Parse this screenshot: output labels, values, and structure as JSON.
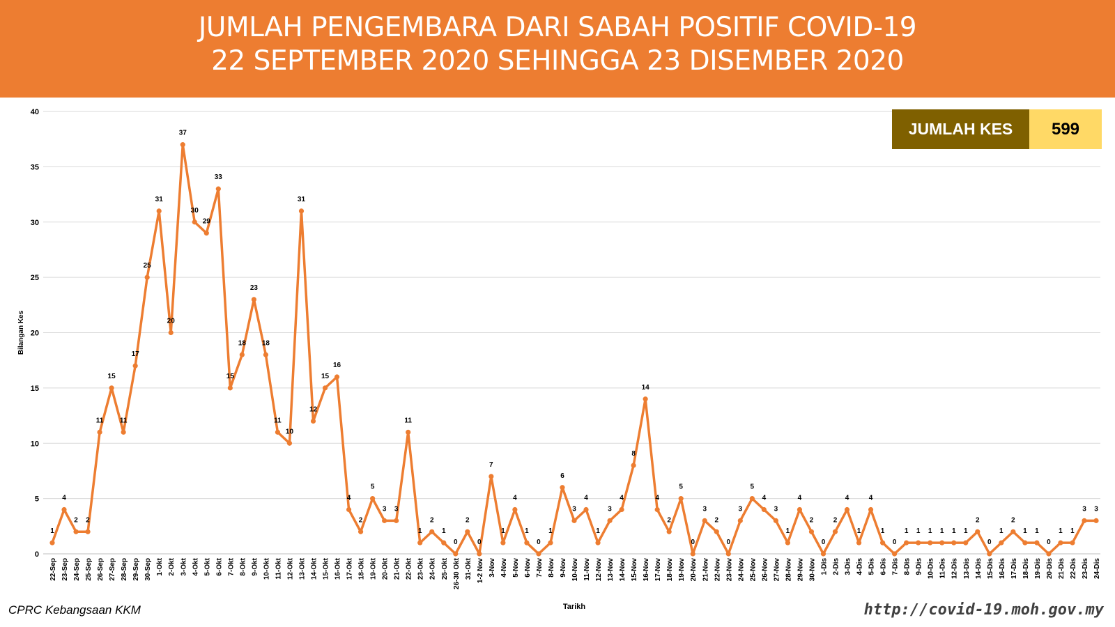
{
  "header": {
    "title_line1": "JUMLAH PENGEMBARA DARI SABAH POSITIF COVID-19",
    "title_line2": "22 SEPTEMBER 2020 SEHINGGA 23 DISEMBER 2020"
  },
  "total": {
    "label": "JUMLAH KES",
    "value": "599"
  },
  "footer": {
    "source": "CPRC Kebangsaan KKM",
    "url": "http://covid-19.moh.gov.my"
  },
  "colors": {
    "accent": "#ED7D31",
    "label_bg": "#7F6000",
    "value_bg": "#FFD966"
  },
  "chart_data": {
    "type": "line",
    "xlabel": "Tarikh",
    "ylabel": "Bilangan Kes",
    "ylim": [
      0,
      40
    ],
    "yticks": [
      0,
      5,
      10,
      15,
      20,
      25,
      30,
      35,
      40
    ],
    "grid": true,
    "categories": [
      "22-Sep",
      "23-Sep",
      "24-Sep",
      "25-Sep",
      "26-Sep",
      "27-Sep",
      "28-Sep",
      "29-Sep",
      "30-Sep",
      "1-Okt",
      "2-Okt",
      "3-Okt",
      "4-Okt",
      "5-Okt",
      "6-Okt",
      "7-Okt",
      "8-Okt",
      "9-Okt",
      "10-Okt",
      "11-Okt",
      "12-Okt",
      "13-Okt",
      "14-Okt",
      "15-Okt",
      "16-Okt",
      "17-Okt",
      "18-Okt",
      "19-Okt",
      "20-Okt",
      "21-Okt",
      "22-Okt",
      "23-Okt",
      "24-Okt",
      "25-Okt",
      "26-30 Okt",
      "31-Okt",
      "1-2 Nov",
      "3-Nov",
      "4-Nov",
      "5-Nov",
      "6-Nov",
      "7-Nov",
      "8-Nov",
      "9-Nov",
      "10-Nov",
      "11-Nov",
      "12-Nov",
      "13-Nov",
      "14-Nov",
      "15-Nov",
      "16-Nov",
      "17-Nov",
      "18-Nov",
      "19-Nov",
      "20-Nov",
      "21-Nov",
      "22-Nov",
      "23-Nov",
      "24-Nov",
      "25-Nov",
      "26-Nov",
      "27-Nov",
      "28-Nov",
      "29-Nov",
      "30-Nov",
      "1-Dis",
      "2-Dis",
      "3-Dis",
      "4-Dis",
      "5-Dis",
      "6-Dis",
      "7-Dis",
      "8-Dis",
      "9-Dis",
      "10-Dis",
      "11-Dis",
      "12-Dis",
      "13-Dis",
      "14-Dis",
      "15-Dis",
      "16-Dis",
      "17-Dis",
      "18-Dis",
      "19-Dis",
      "20-Dis",
      "21-Dis",
      "22-Dis",
      "23-Dis",
      "24-Dis"
    ],
    "values": [
      1,
      4,
      2,
      2,
      11,
      15,
      11,
      17,
      25,
      31,
      20,
      37,
      30,
      29,
      33,
      15,
      18,
      23,
      18,
      11,
      10,
      31,
      12,
      15,
      16,
      4,
      2,
      5,
      3,
      3,
      11,
      1,
      2,
      1,
      0,
      2,
      0,
      7,
      1,
      4,
      1,
      0,
      1,
      6,
      3,
      4,
      1,
      3,
      4,
      8,
      14,
      4,
      2,
      5,
      0,
      3,
      2,
      0,
      3,
      5,
      4,
      3,
      1,
      4,
      2,
      0,
      2,
      4,
      1,
      4,
      1,
      0,
      1,
      1,
      1,
      1,
      1,
      1,
      2,
      0,
      1,
      2,
      1,
      1,
      0,
      1,
      1,
      3,
      3
    ],
    "line_color": "#ED7D31"
  }
}
